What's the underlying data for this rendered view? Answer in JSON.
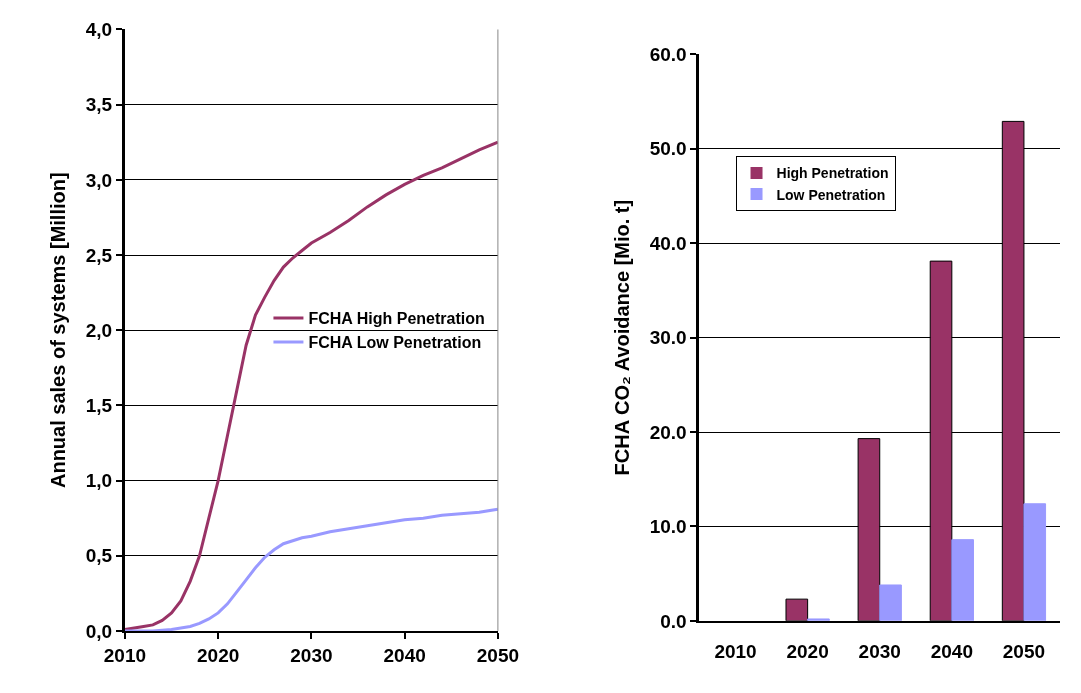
{
  "chart_data": [
    {
      "type": "line",
      "ylabel": "Annual sales of systems [Million]",
      "x": [
        2010,
        2012,
        2013,
        2014,
        2015,
        2016,
        2017,
        2018,
        2019,
        2020,
        2021,
        2022,
        2023,
        2024,
        2025,
        2026,
        2027,
        2028,
        2029,
        2030,
        2032,
        2034,
        2036,
        2038,
        2040,
        2042,
        2044,
        2046,
        2048,
        2050
      ],
      "series": [
        {
          "name": "FCHA High Penetration",
          "color": "#993366",
          "values": [
            0.01,
            0.03,
            0.04,
            0.07,
            0.12,
            0.2,
            0.33,
            0.5,
            0.75,
            1.0,
            1.3,
            1.6,
            1.9,
            2.1,
            2.22,
            2.33,
            2.42,
            2.48,
            2.53,
            2.58,
            2.65,
            2.73,
            2.82,
            2.9,
            2.97,
            3.03,
            3.08,
            3.14,
            3.2,
            3.25
          ]
        },
        {
          "name": "FCHA Low Penetration",
          "color": "#9999ff",
          "values": [
            0.0,
            0.0,
            0.0,
            0.005,
            0.01,
            0.02,
            0.03,
            0.05,
            0.08,
            0.12,
            0.18,
            0.26,
            0.34,
            0.42,
            0.49,
            0.54,
            0.58,
            0.6,
            0.62,
            0.63,
            0.66,
            0.68,
            0.7,
            0.72,
            0.74,
            0.75,
            0.77,
            0.78,
            0.79,
            0.81
          ]
        }
      ],
      "xlim": [
        2010,
        2050
      ],
      "xticks": [
        2010,
        2020,
        2030,
        2040,
        2050
      ],
      "ylim": [
        0,
        4
      ],
      "yticks": [
        {
          "value": 0,
          "label": "0,0"
        },
        {
          "value": 0.5,
          "label": "0,5"
        },
        {
          "value": 1,
          "label": "1,0"
        },
        {
          "value": 1.5,
          "label": "1,5"
        },
        {
          "value": 2,
          "label": "2,0"
        },
        {
          "value": 2.5,
          "label": "2,5"
        },
        {
          "value": 3,
          "label": "3,0"
        },
        {
          "value": 3.5,
          "label": "3,5"
        },
        {
          "value": 4,
          "label": "4,0"
        }
      ],
      "grid": "y",
      "legend": "right",
      "line_style": "solid",
      "marker": "none"
    },
    {
      "type": "bar",
      "ylabel": "FCHA CO₂ Avoidance [Mio. t]",
      "categories": [
        "2010",
        "2020",
        "2030",
        "2040",
        "2050"
      ],
      "series": [
        {
          "name": "High Penetration",
          "color": "#993366",
          "values": [
            0,
            2.3,
            19.3,
            38.1,
            52.9
          ]
        },
        {
          "name": "Low Penetration",
          "color": "#9999ff",
          "values": [
            0,
            0.2,
            3.8,
            8.6,
            12.4
          ]
        }
      ],
      "ylim": [
        0,
        60
      ],
      "yticks": [
        {
          "value": 0,
          "label": "0.0"
        },
        {
          "value": 10,
          "label": "10.0"
        },
        {
          "value": 20,
          "label": "20.0"
        },
        {
          "value": 30,
          "label": "30.0"
        },
        {
          "value": 40,
          "label": "40.0"
        },
        {
          "value": 50,
          "label": "50.0"
        },
        {
          "value": 60,
          "label": "60.0"
        }
      ],
      "grid": "y",
      "legend": "top left"
    }
  ]
}
